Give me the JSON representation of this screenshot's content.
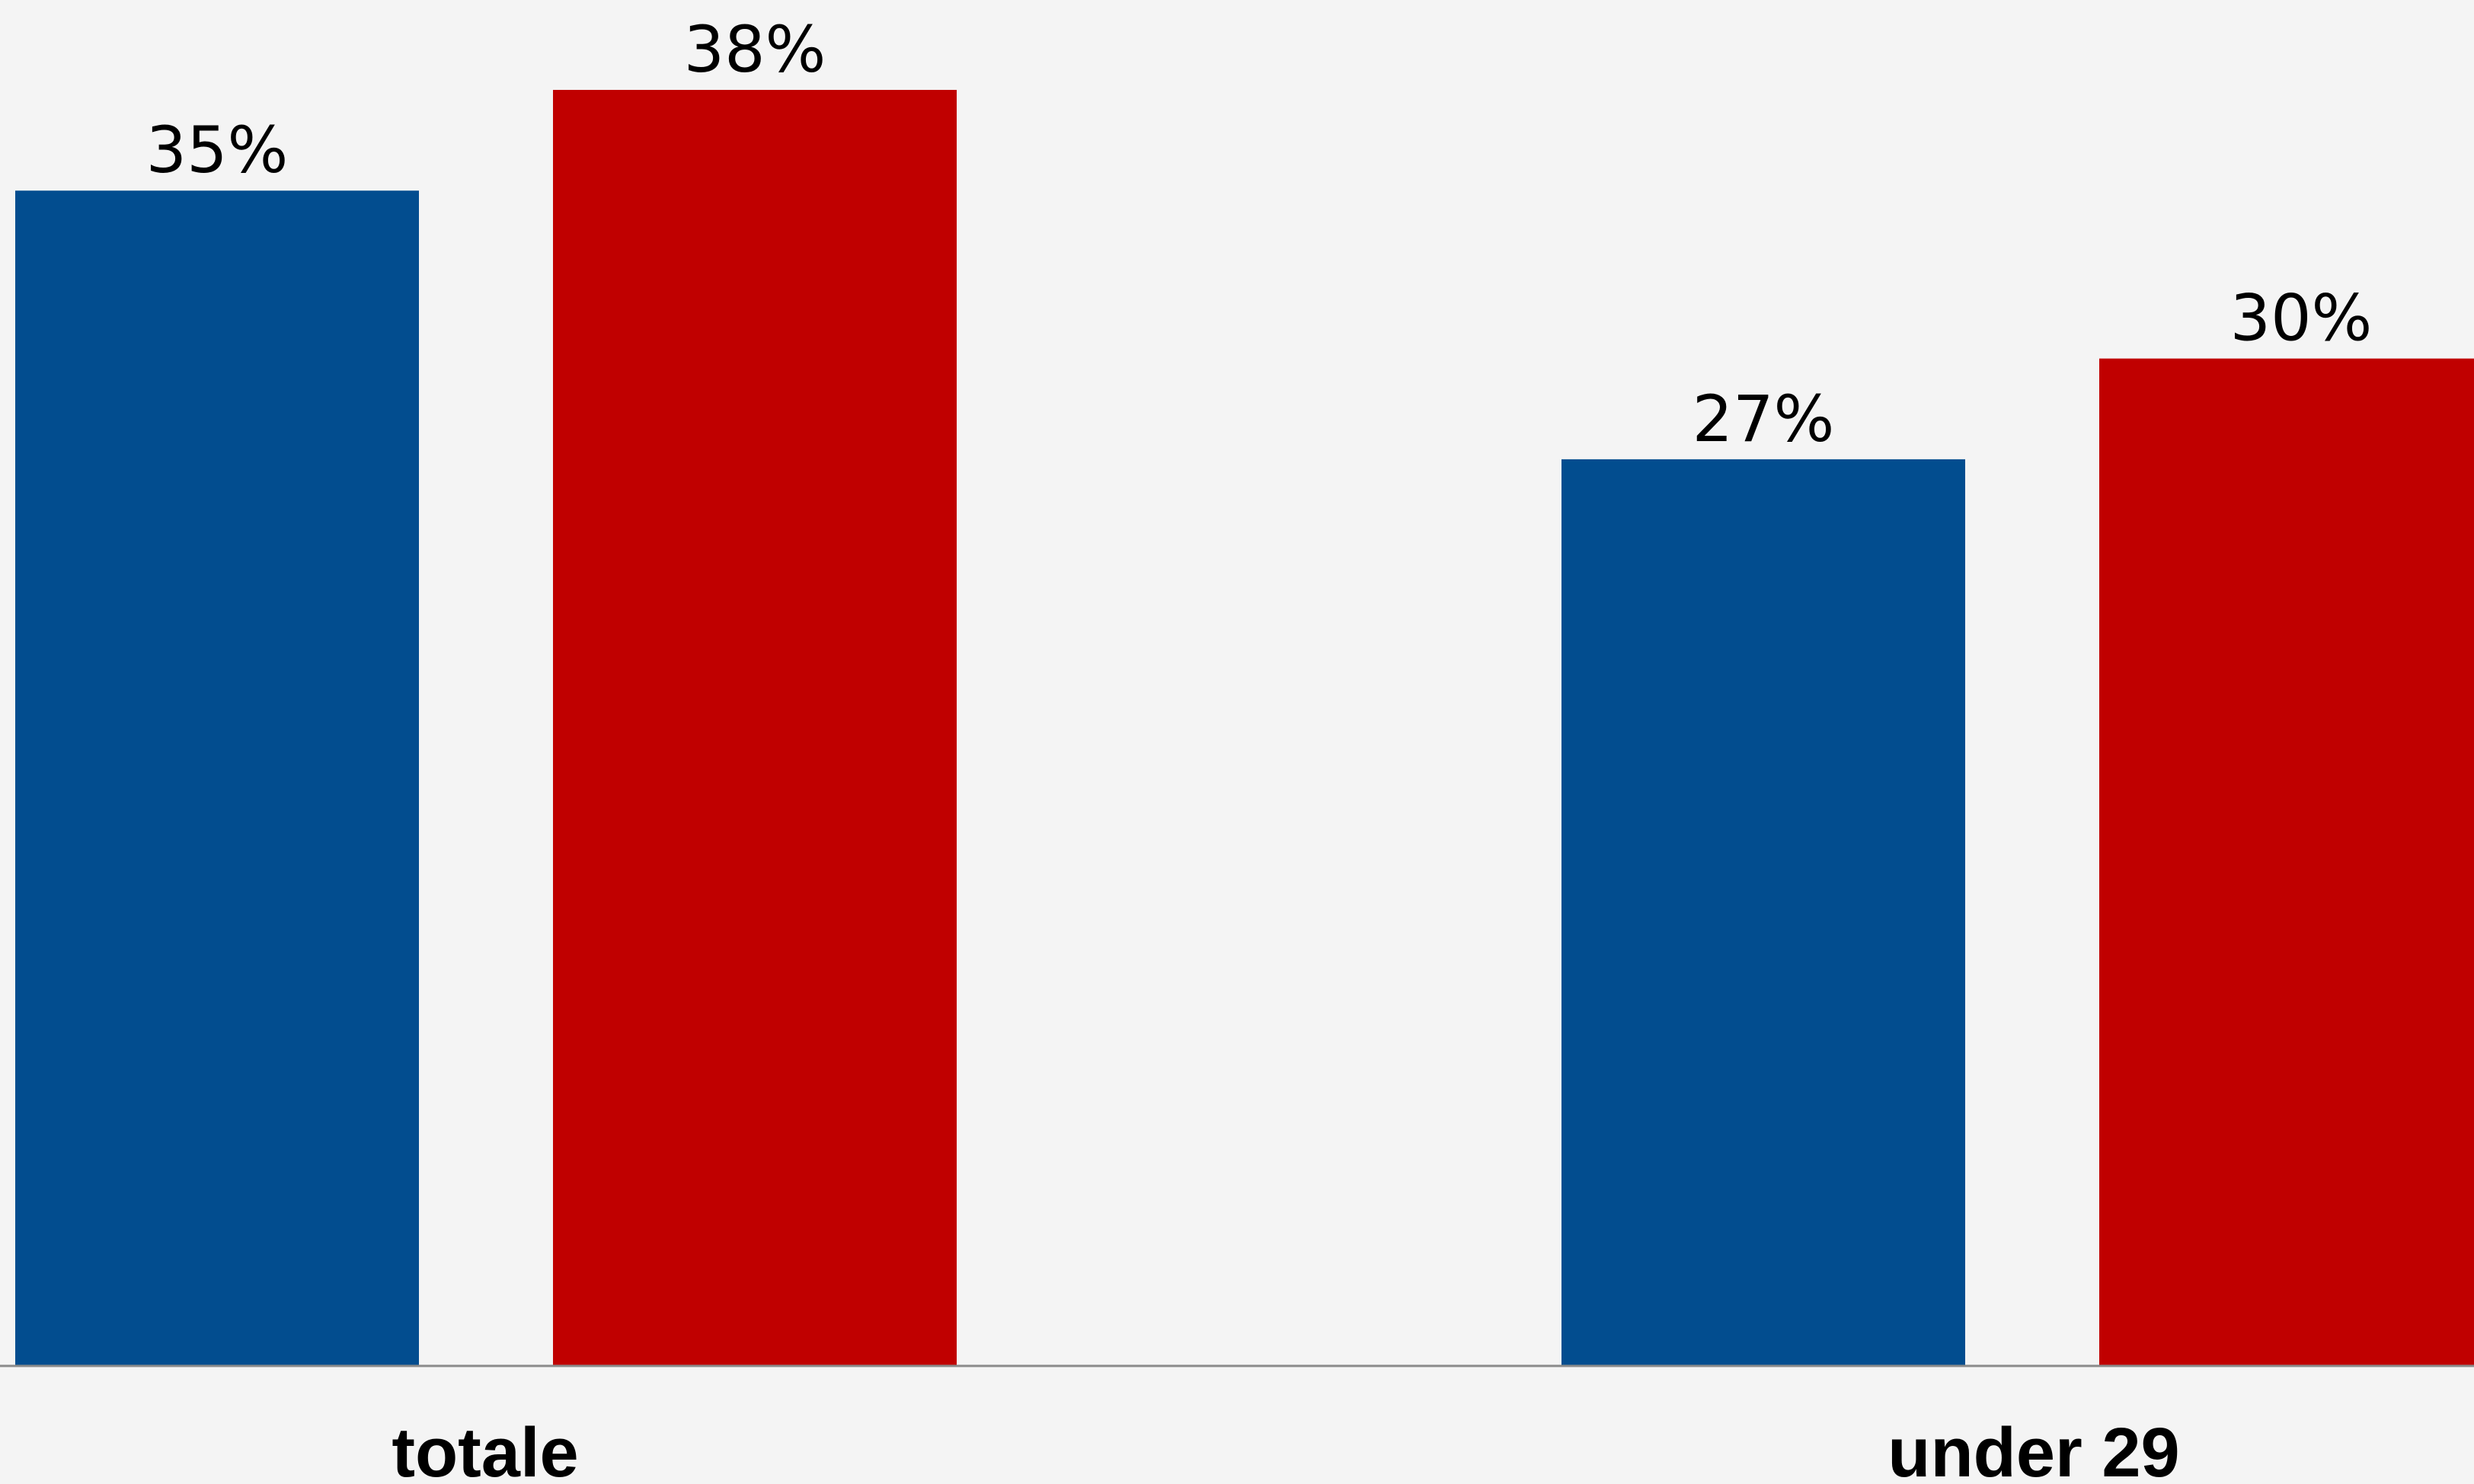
{
  "chart_data": {
    "type": "bar",
    "categories": [
      "totale",
      "under 29"
    ],
    "series": [
      {
        "values": [
          35,
          38
        ]
      },
      {
        "values": [
          27,
          30
        ]
      }
    ],
    "value_labels": [
      [
        "35%",
        "38%"
      ],
      [
        "27%",
        "30%"
      ]
    ],
    "bar_colors": [
      "#024d8f",
      "#c00000"
    ],
    "ylim": [
      0,
      38
    ],
    "grid": false,
    "legend": "none",
    "title": "",
    "xlabel": "",
    "ylabel": ""
  }
}
